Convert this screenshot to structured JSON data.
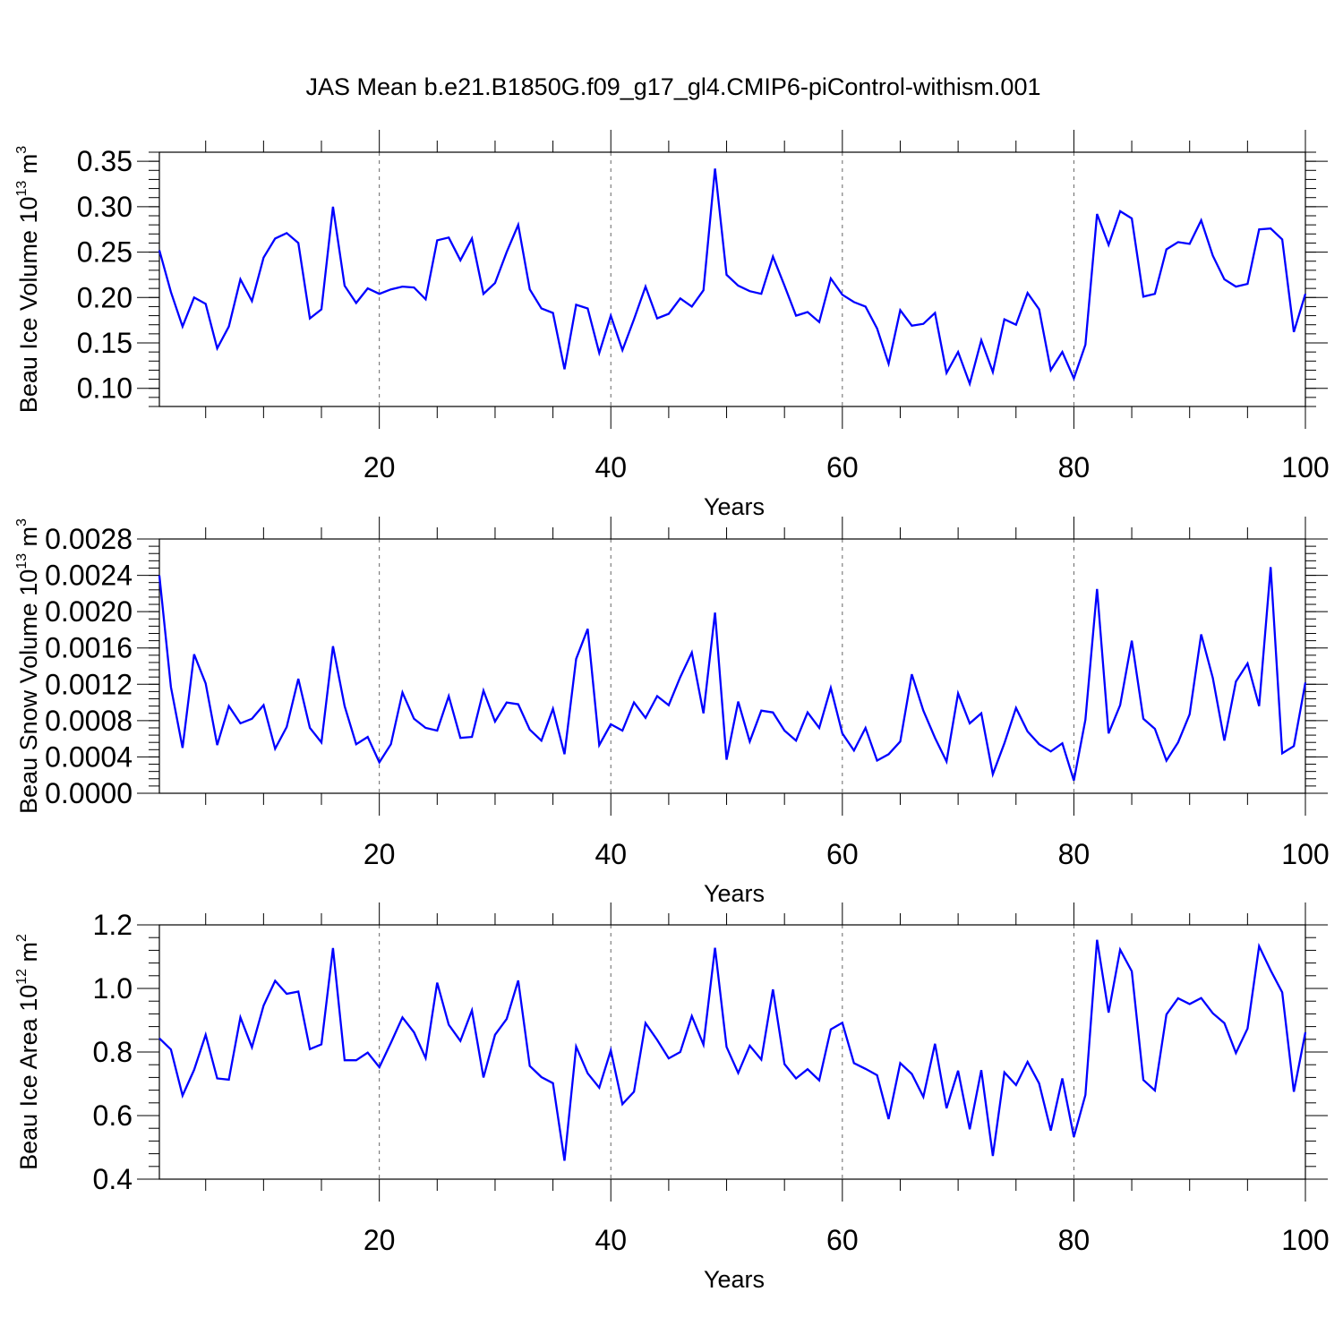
{
  "title": "JAS Mean b.e21.B1850G.f09_g17_gl4.CMIP6-piControl-withism.001",
  "colors": {
    "line": "#0000ff",
    "axis": "#000000",
    "grid": "#666666"
  },
  "chart_data": [
    {
      "type": "line",
      "xlabel": "Years",
      "ylabel": {
        "prefix": "Beau Ice Volume 10",
        "exp": "13",
        "mid": " m",
        "unit_exp": "3"
      },
      "xlim": [
        1,
        100
      ],
      "ylim": [
        0.08,
        0.36
      ],
      "grid_x": [
        20,
        40,
        60,
        80
      ],
      "x_ticks": [
        20,
        40,
        60,
        80,
        100
      ],
      "y_ticks": [
        "0.10",
        "0.15",
        "0.20",
        "0.25",
        "0.30",
        "0.35"
      ],
      "y_tick_values": [
        0.1,
        0.15,
        0.2,
        0.25,
        0.3,
        0.35
      ],
      "series": [
        {
          "values": [
            0.252,
            0.206,
            0.168,
            0.2,
            0.193,
            0.144,
            0.168,
            0.22,
            0.196,
            0.244,
            0.265,
            0.271,
            0.26,
            0.177,
            0.187,
            0.3,
            0.213,
            0.194,
            0.21,
            0.204,
            0.209,
            0.212,
            0.211,
            0.198,
            0.263,
            0.266,
            0.241,
            0.265,
            0.204,
            0.216,
            0.25,
            0.28,
            0.209,
            0.188,
            0.183,
            0.121,
            0.192,
            0.188,
            0.139,
            0.18,
            0.142,
            0.176,
            0.212,
            0.177,
            0.182,
            0.199,
            0.19,
            0.208,
            0.342,
            0.225,
            0.213,
            0.207,
            0.204,
            0.245,
            0.213,
            0.18,
            0.184,
            0.173,
            0.221,
            0.203,
            0.195,
            0.19,
            0.166,
            0.127,
            0.186,
            0.169,
            0.171,
            0.183,
            0.117,
            0.14,
            0.105,
            0.153,
            0.118,
            0.176,
            0.17,
            0.205,
            0.187,
            0.12,
            0.14,
            0.111,
            0.148,
            0.292,
            0.258,
            0.295,
            0.287,
            0.201,
            0.204,
            0.253,
            0.261,
            0.259,
            0.285,
            0.246,
            0.22,
            0.212,
            0.215,
            0.275,
            0.276,
            0.264,
            0.162,
            0.204
          ]
        }
      ]
    },
    {
      "type": "line",
      "xlabel": "Years",
      "ylabel": {
        "prefix": "Beau Snow Volume 10",
        "exp": "13",
        "mid": " m",
        "unit_exp": "3"
      },
      "xlim": [
        1,
        100
      ],
      "ylim": [
        0.0,
        0.0028
      ],
      "grid_x": [
        20,
        40,
        60,
        80
      ],
      "x_ticks": [
        20,
        40,
        60,
        80,
        100
      ],
      "y_ticks": [
        "0.0000",
        "0.0004",
        "0.0008",
        "0.0012",
        "0.0016",
        "0.0020",
        "0.0024",
        "0.0028"
      ],
      "y_tick_values": [
        0.0,
        0.0004,
        0.0008,
        0.0012,
        0.0016,
        0.002,
        0.0024,
        0.0028
      ],
      "series": [
        {
          "values": [
            0.0024,
            0.00117,
            0.0005,
            0.00153,
            0.00121,
            0.00053,
            0.00096,
            0.00077,
            0.00082,
            0.00097,
            0.00049,
            0.00073,
            0.00126,
            0.00072,
            0.00056,
            0.00162,
            0.00096,
            0.00054,
            0.00062,
            0.00034,
            0.00054,
            0.00111,
            0.00082,
            0.00072,
            0.00069,
            0.00107,
            0.00061,
            0.00062,
            0.00113,
            0.00079,
            0.001,
            0.00098,
            0.0007,
            0.00058,
            0.00093,
            0.00043,
            0.00148,
            0.00181,
            0.00053,
            0.00076,
            0.00069,
            0.001,
            0.00083,
            0.00107,
            0.00097,
            0.00128,
            0.00155,
            0.00088,
            0.00199,
            0.00037,
            0.00101,
            0.00057,
            0.00091,
            0.00089,
            0.00069,
            0.00058,
            0.00089,
            0.00072,
            0.00116,
            0.00066,
            0.00047,
            0.00072,
            0.00036,
            0.00043,
            0.00057,
            0.00131,
            0.00091,
            0.00061,
            0.00035,
            0.0011,
            0.00077,
            0.00088,
            0.00021,
            0.00055,
            0.00094,
            0.00068,
            0.00054,
            0.00046,
            0.00055,
            0.00014,
            0.00081,
            0.00225,
            0.00066,
            0.00097,
            0.00168,
            0.00082,
            0.00071,
            0.00036,
            0.00056,
            0.00087,
            0.00175,
            0.00127,
            0.00058,
            0.00123,
            0.00143,
            0.00096,
            0.00249,
            0.00044,
            0.00052,
            0.00122
          ]
        }
      ]
    },
    {
      "type": "line",
      "xlabel": "Years",
      "ylabel": {
        "prefix": "Beau Ice Area 10",
        "exp": "12",
        "mid": " m",
        "unit_exp": "2"
      },
      "xlim": [
        1,
        100
      ],
      "ylim": [
        0.4,
        1.2
      ],
      "grid_x": [
        20,
        40,
        60,
        80
      ],
      "x_ticks": [
        20,
        40,
        60,
        80,
        100
      ],
      "y_ticks": [
        "0.4",
        "0.6",
        "0.8",
        "1.0",
        "1.2"
      ],
      "y_tick_values": [
        0.4,
        0.6,
        0.8,
        1.0,
        1.2
      ],
      "series": [
        {
          "values": [
            0.843,
            0.808,
            0.663,
            0.744,
            0.854,
            0.717,
            0.713,
            0.909,
            0.815,
            0.946,
            1.024,
            0.983,
            0.99,
            0.809,
            0.824,
            1.127,
            0.774,
            0.774,
            0.798,
            0.752,
            0.829,
            0.909,
            0.862,
            0.781,
            1.018,
            0.886,
            0.835,
            0.931,
            0.72,
            0.854,
            0.904,
            1.025,
            0.756,
            0.721,
            0.702,
            0.458,
            0.817,
            0.733,
            0.688,
            0.805,
            0.636,
            0.675,
            0.891,
            0.838,
            0.78,
            0.8,
            0.913,
            0.823,
            1.128,
            0.816,
            0.734,
            0.82,
            0.776,
            0.997,
            0.762,
            0.717,
            0.746,
            0.711,
            0.871,
            0.892,
            0.765,
            0.747,
            0.727,
            0.589,
            0.765,
            0.731,
            0.659,
            0.826,
            0.623,
            0.741,
            0.557,
            0.743,
            0.473,
            0.736,
            0.696,
            0.769,
            0.701,
            0.553,
            0.717,
            0.533,
            0.665,
            1.153,
            0.924,
            1.122,
            1.054,
            0.712,
            0.679,
            0.918,
            0.969,
            0.951,
            0.97,
            0.922,
            0.891,
            0.797,
            0.874,
            1.133,
            1.057,
            0.988,
            0.675,
            0.862
          ]
        }
      ]
    }
  ]
}
